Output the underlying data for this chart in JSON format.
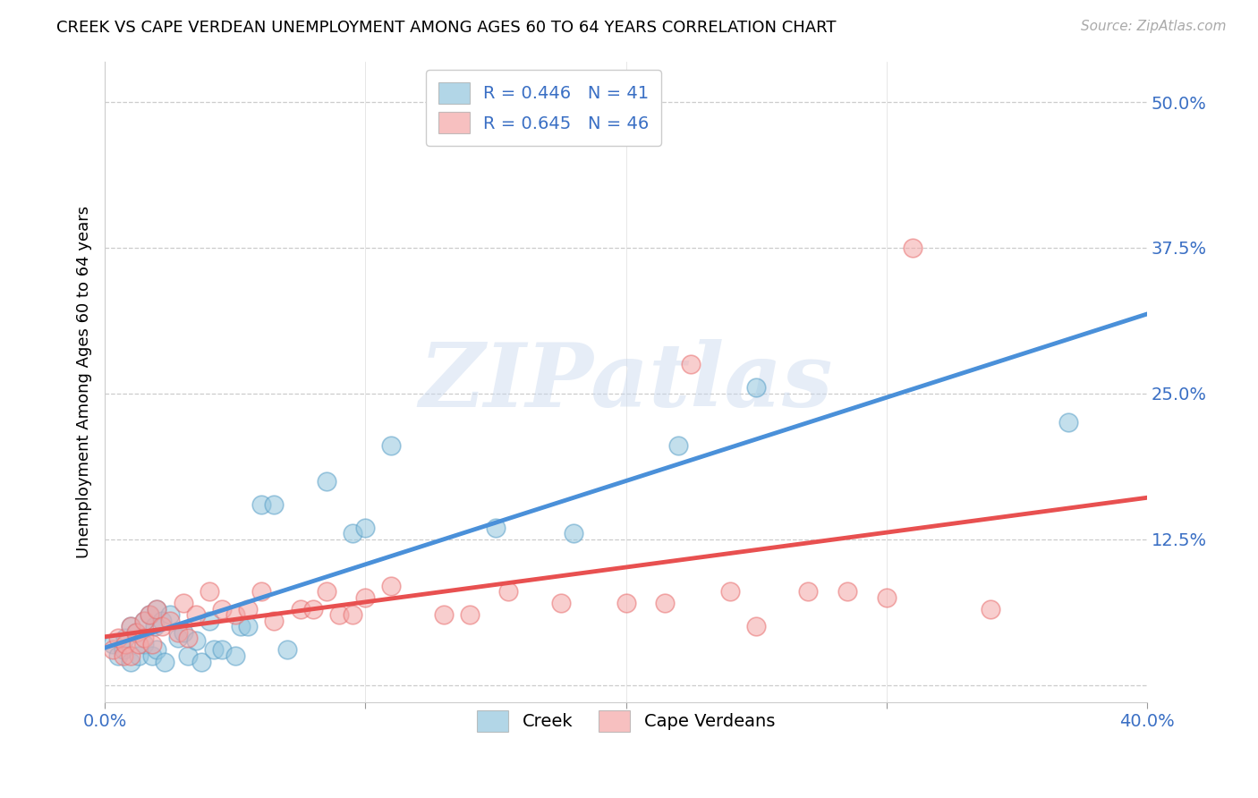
{
  "title": "CREEK VS CAPE VERDEAN UNEMPLOYMENT AMONG AGES 60 TO 64 YEARS CORRELATION CHART",
  "source": "Source: ZipAtlas.com",
  "ylabel": "Unemployment Among Ages 60 to 64 years",
  "xlim": [
    0.0,
    0.4
  ],
  "ylim": [
    -0.015,
    0.535
  ],
  "xticks": [
    0.0,
    0.1,
    0.2,
    0.3,
    0.4
  ],
  "xtick_labels": [
    "0.0%",
    "",
    "",
    "",
    "40.0%"
  ],
  "yticks": [
    0.0,
    0.125,
    0.25,
    0.375,
    0.5
  ],
  "ytick_labels": [
    "",
    "12.5%",
    "25.0%",
    "37.5%",
    "50.0%"
  ],
  "creek_color": "#92c5de",
  "cape_color": "#f4a6a6",
  "creek_edge_color": "#5aa0c8",
  "cape_edge_color": "#e87070",
  "creek_line_color": "#4a90d9",
  "cape_line_color": "#e85050",
  "creek_R": 0.446,
  "creek_N": 41,
  "cape_R": 0.645,
  "cape_N": 46,
  "watermark": "ZIPatlas",
  "creek_x": [
    0.003,
    0.005,
    0.007,
    0.008,
    0.01,
    0.01,
    0.012,
    0.013,
    0.015,
    0.015,
    0.017,
    0.018,
    0.019,
    0.02,
    0.02,
    0.022,
    0.023,
    0.025,
    0.028,
    0.03,
    0.032,
    0.035,
    0.037,
    0.04,
    0.042,
    0.045,
    0.05,
    0.052,
    0.055,
    0.06,
    0.065,
    0.07,
    0.085,
    0.095,
    0.1,
    0.11,
    0.15,
    0.18,
    0.22,
    0.25,
    0.37
  ],
  "creek_y": [
    0.035,
    0.025,
    0.03,
    0.04,
    0.05,
    0.02,
    0.045,
    0.025,
    0.055,
    0.035,
    0.06,
    0.025,
    0.05,
    0.065,
    0.03,
    0.055,
    0.02,
    0.06,
    0.04,
    0.045,
    0.025,
    0.038,
    0.02,
    0.055,
    0.03,
    0.03,
    0.025,
    0.05,
    0.05,
    0.155,
    0.155,
    0.03,
    0.175,
    0.13,
    0.135,
    0.205,
    0.135,
    0.13,
    0.205,
    0.255,
    0.225
  ],
  "cape_x": [
    0.003,
    0.005,
    0.007,
    0.008,
    0.01,
    0.01,
    0.012,
    0.013,
    0.015,
    0.015,
    0.017,
    0.018,
    0.02,
    0.022,
    0.025,
    0.028,
    0.03,
    0.032,
    0.035,
    0.04,
    0.045,
    0.05,
    0.055,
    0.06,
    0.065,
    0.075,
    0.08,
    0.085,
    0.09,
    0.095,
    0.1,
    0.11,
    0.13,
    0.14,
    0.155,
    0.175,
    0.2,
    0.215,
    0.225,
    0.24,
    0.25,
    0.27,
    0.285,
    0.3,
    0.31,
    0.34
  ],
  "cape_y": [
    0.03,
    0.04,
    0.025,
    0.035,
    0.05,
    0.025,
    0.045,
    0.035,
    0.055,
    0.04,
    0.06,
    0.035,
    0.065,
    0.05,
    0.055,
    0.045,
    0.07,
    0.04,
    0.06,
    0.08,
    0.065,
    0.06,
    0.065,
    0.08,
    0.055,
    0.065,
    0.065,
    0.08,
    0.06,
    0.06,
    0.075,
    0.085,
    0.06,
    0.06,
    0.08,
    0.07,
    0.07,
    0.07,
    0.275,
    0.08,
    0.05,
    0.08,
    0.08,
    0.075,
    0.375,
    0.065
  ]
}
